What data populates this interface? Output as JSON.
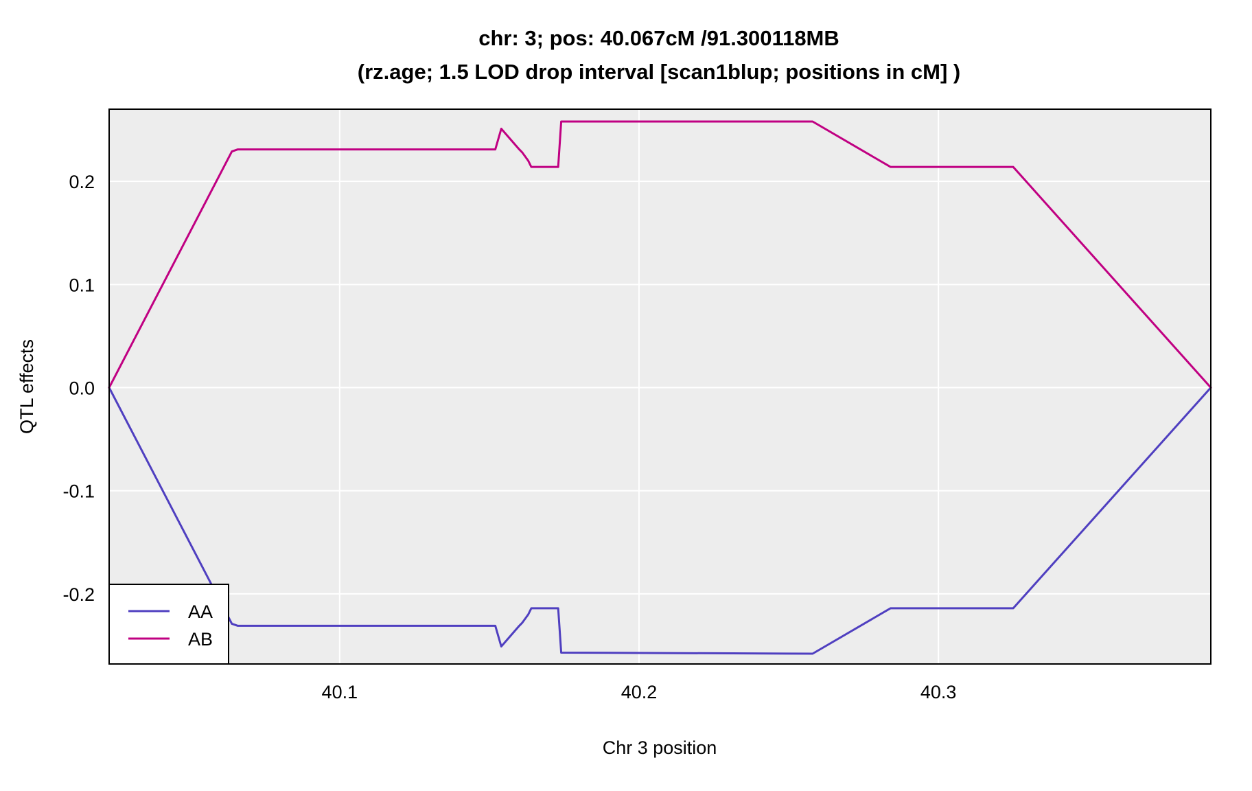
{
  "chart_data": {
    "type": "line",
    "title": "chr: 3; pos: 40.067cM /91.300118MB",
    "subtitle": "(rz.age; 1.5 LOD drop interval [scan1blup; positions in cM] )",
    "xlabel": "Chr 3 position",
    "ylabel": "QTL effects",
    "xlim": [
      40.023,
      40.391
    ],
    "ylim": [
      -0.268,
      0.27
    ],
    "xticks": [
      40.1,
      40.2,
      40.3
    ],
    "xtick_labels": [
      "40.1",
      "40.2",
      "40.3"
    ],
    "yticks": [
      -0.2,
      -0.1,
      0.0,
      0.1,
      0.2
    ],
    "ytick_labels": [
      "-0.2",
      "-0.1",
      "0.0",
      "0.1",
      "0.2"
    ],
    "grid": true,
    "background": "#EDEDED",
    "legend_position": "bottom-left",
    "series": [
      {
        "name": "AA",
        "color": "#4F3FC0",
        "x": [
          40.023,
          40.064,
          40.066,
          40.152,
          40.154,
          40.16,
          40.161,
          40.163,
          40.164,
          40.173,
          40.174,
          40.258,
          40.284,
          40.325,
          40.391
        ],
        "y": [
          0.0,
          -0.229,
          -0.231,
          -0.231,
          -0.251,
          -0.231,
          -0.228,
          -0.22,
          -0.214,
          -0.214,
          -0.257,
          -0.258,
          -0.214,
          -0.214,
          0.0
        ]
      },
      {
        "name": "AB",
        "color": "#C00082",
        "x": [
          40.023,
          40.064,
          40.066,
          40.152,
          40.154,
          40.16,
          40.161,
          40.163,
          40.164,
          40.173,
          40.174,
          40.258,
          40.284,
          40.325,
          40.391
        ],
        "y": [
          0.0,
          0.229,
          0.231,
          0.231,
          0.251,
          0.231,
          0.228,
          0.22,
          0.214,
          0.214,
          0.258,
          0.258,
          0.214,
          0.214,
          0.0
        ]
      }
    ]
  }
}
